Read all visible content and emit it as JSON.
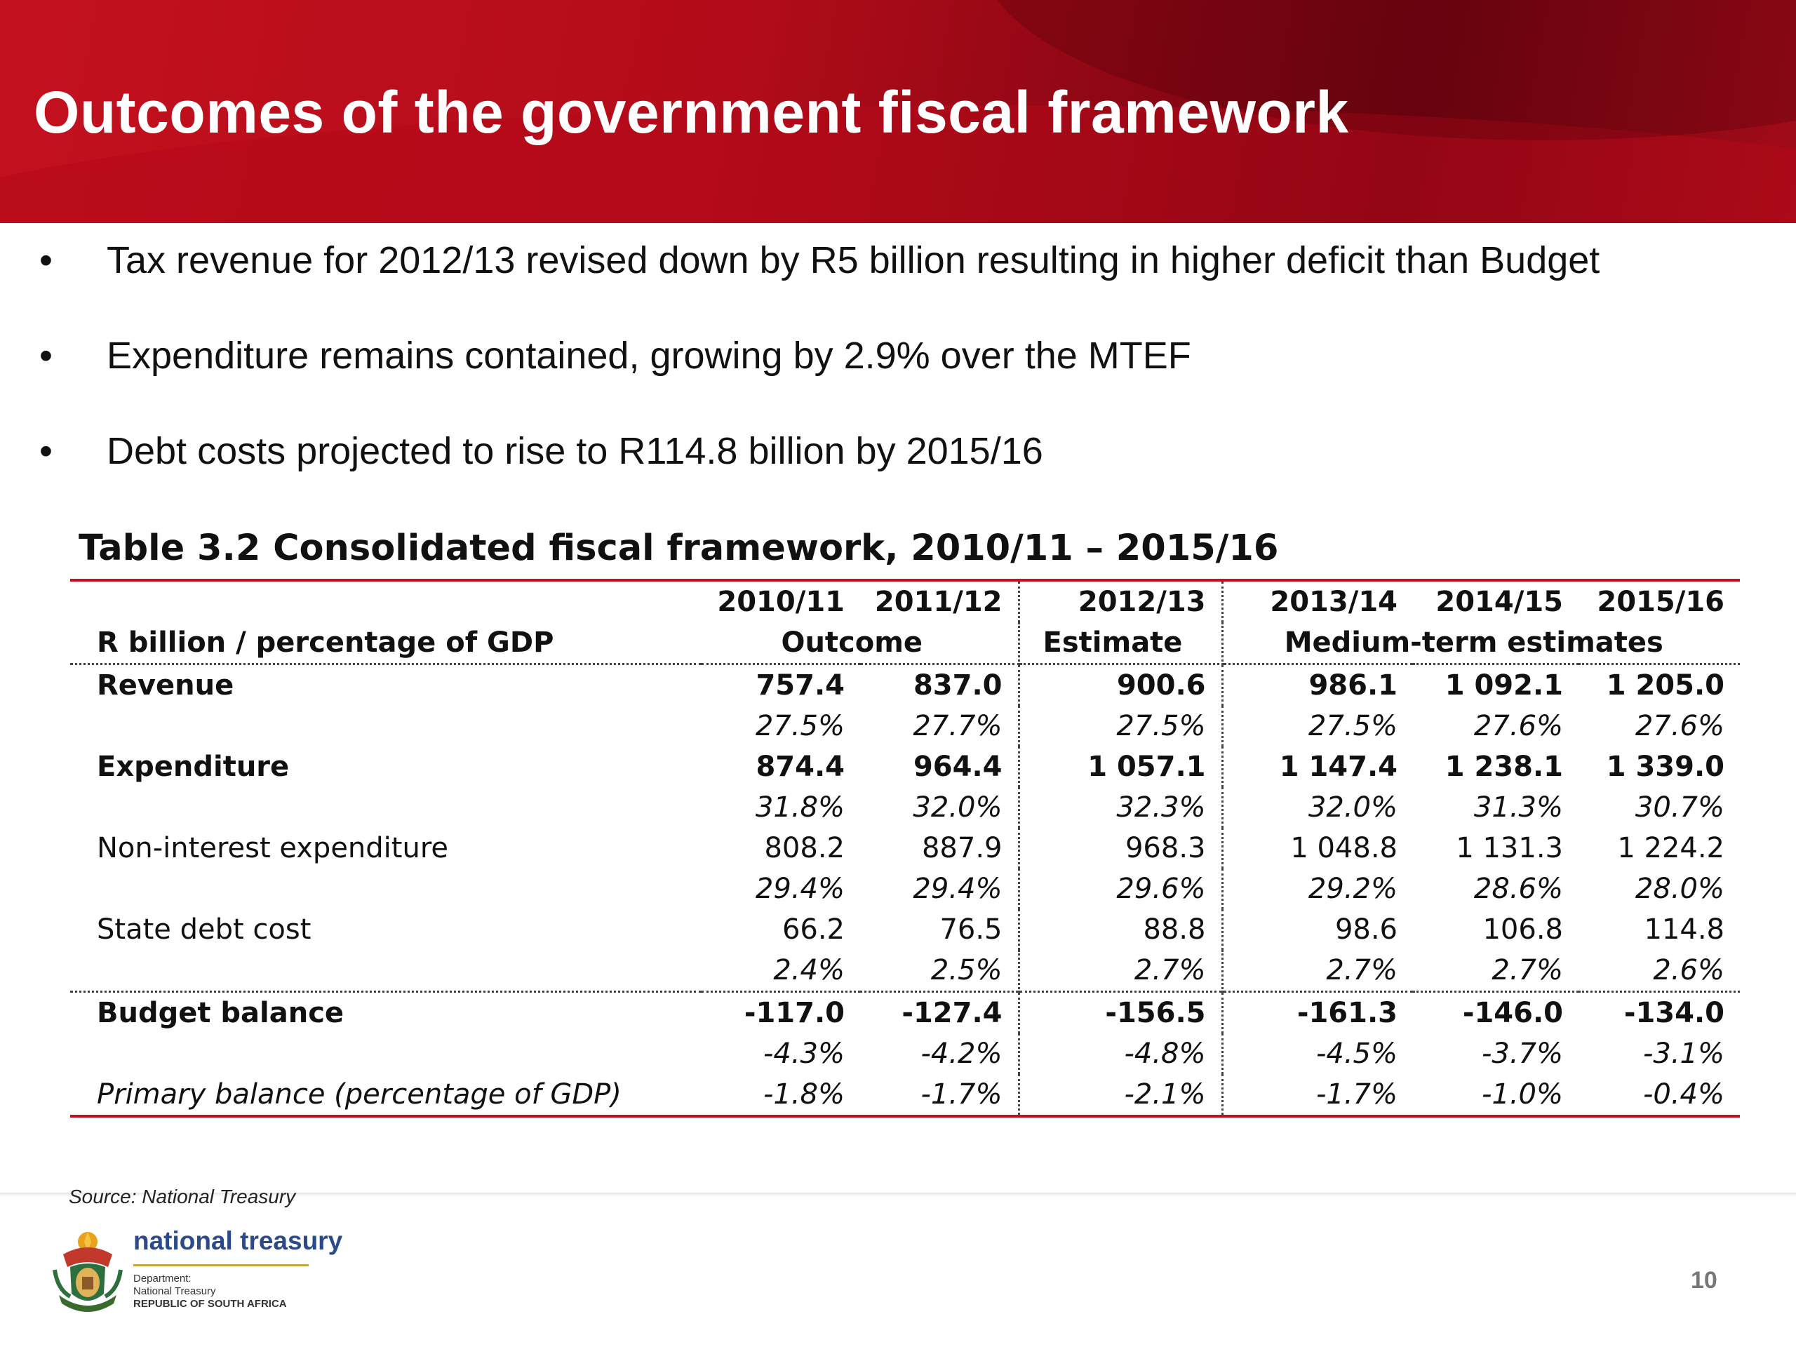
{
  "slide": {
    "title": "Outcomes of the government fiscal framework",
    "bullets": [
      "Tax revenue for 2012/13 revised down by R5 billion resulting in higher deficit  than Budget",
      "Expenditure remains contained, growing by 2.9% over the MTEF",
      "Debt costs projected to rise to R114.8 billion by 2015/16"
    ],
    "bullet_marker": "•"
  },
  "table": {
    "title": "Table 3.2  Consolidated fiscal framework, 2010/11 – 2015/16",
    "years": [
      "2010/11",
      "2011/12",
      "2012/13",
      "2013/14",
      "2014/15",
      "2015/16"
    ],
    "row_header": "R billion / percentage of GDP",
    "groups": {
      "outcome": "Outcome",
      "estimate": "Estimate",
      "medium_term": "Medium-term estimates"
    },
    "rows": [
      {
        "label": "Revenue",
        "values": [
          "757.4",
          "837.0",
          "900.6",
          "986.1",
          "1 092.1",
          "1 205.0"
        ],
        "pct": [
          "27.5%",
          "27.7%",
          "27.5%",
          "27.5%",
          "27.6%",
          "27.6%"
        ]
      },
      {
        "label": "Expenditure",
        "values": [
          "874.4",
          "964.4",
          "1 057.1",
          "1 147.4",
          "1 238.1",
          "1 339.0"
        ],
        "pct": [
          "31.8%",
          "32.0%",
          "32.3%",
          "32.0%",
          "31.3%",
          "30.7%"
        ]
      },
      {
        "label": "Non-interest expenditure",
        "values": [
          "808.2",
          "887.9",
          "968.3",
          "1 048.8",
          "1 131.3",
          "1 224.2"
        ],
        "pct": [
          "29.4%",
          "29.4%",
          "29.6%",
          "29.2%",
          "28.6%",
          "28.0%"
        ]
      },
      {
        "label": "State debt cost",
        "values": [
          "66.2",
          "76.5",
          "88.8",
          "98.6",
          "106.8",
          "114.8"
        ],
        "pct": [
          "2.4%",
          "2.5%",
          "2.7%",
          "2.7%",
          "2.7%",
          "2.6%"
        ]
      },
      {
        "label": "Budget balance",
        "values": [
          "-117.0",
          "-127.4",
          "-156.5",
          "-161.3",
          "-146.0",
          "-134.0"
        ],
        "pct": [
          "-4.3%",
          "-4.2%",
          "-4.8%",
          "-4.5%",
          "-3.7%",
          "-3.1%"
        ]
      },
      {
        "label": "Primary balance (percentage of GDP)",
        "values": [
          "-1.8%",
          "-1.7%",
          "-2.1%",
          "-1.7%",
          "-1.0%",
          "-0.4%"
        ]
      }
    ]
  },
  "footer": {
    "source": "Source: National Treasury",
    "logo_name": "national treasury",
    "logo_line1": "Department:",
    "logo_line2": "National Treasury",
    "logo_line3": "REPUBLIC OF SOUTH AFRICA",
    "page_number": "10"
  },
  "colors": {
    "banner": "#b40c1a",
    "accent_line": "#c0121f",
    "logo_text": "#2c4a8a"
  },
  "icons": {
    "logo": "coat-of-arms-icon"
  }
}
